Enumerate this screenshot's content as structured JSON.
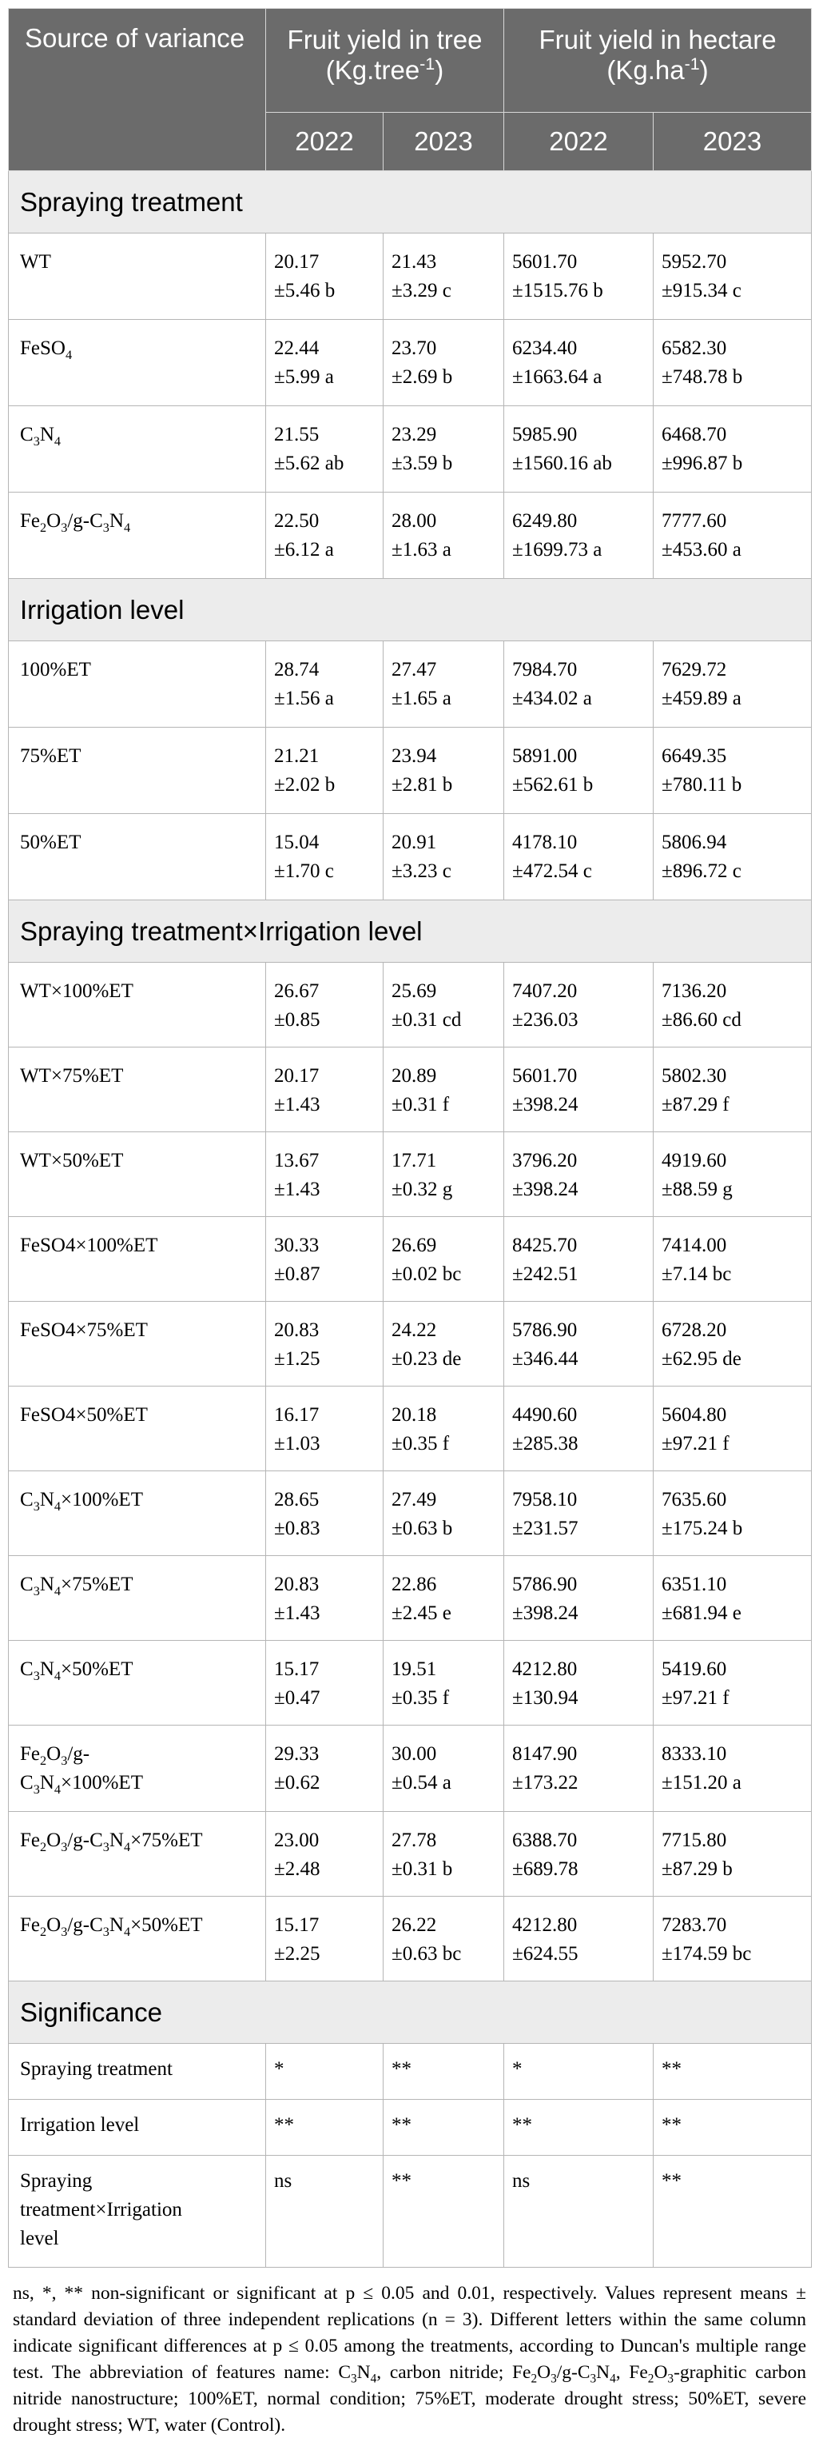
{
  "header": {
    "source_col": "Source of variance",
    "tree_group": "Fruit yield in tree (Kg.tree<sup>-1</sup>)",
    "hectare_group": "Fruit yield in hectare (Kg.ha<sup>-1</sup>)",
    "years": [
      "2022",
      "2023",
      "2022",
      "2023"
    ]
  },
  "sections": [
    {
      "title": "Spraying treatment",
      "rows": [
        {
          "label": "WT",
          "values": [
            [
              "20.17",
              "±5.46 b"
            ],
            [
              "21.43",
              "±3.29 c"
            ],
            [
              "5601.70",
              "±1515.76 b"
            ],
            [
              "5952.70",
              "±915.34 c"
            ]
          ]
        },
        {
          "label": "FeSO<sub>4</sub>",
          "values": [
            [
              "22.44",
              "±5.99 a"
            ],
            [
              "23.70",
              "±2.69 b"
            ],
            [
              "6234.40",
              "±1663.64 a"
            ],
            [
              "6582.30",
              "±748.78 b"
            ]
          ]
        },
        {
          "label": "C<sub>3</sub>N<sub>4</sub>",
          "values": [
            [
              "21.55",
              "±5.62 ab"
            ],
            [
              "23.29",
              "±3.59 b"
            ],
            [
              "5985.90",
              "±1560.16 ab"
            ],
            [
              "6468.70",
              "±996.87 b"
            ]
          ]
        },
        {
          "label": "Fe<sub>2</sub>O<sub>3</sub>/g-C<sub>3</sub>N<sub>4</sub>",
          "values": [
            [
              "22.50",
              "±6.12 a"
            ],
            [
              "28.00",
              "±1.63 a"
            ],
            [
              "6249.80",
              "±1699.73 a"
            ],
            [
              "7777.60",
              "±453.60 a"
            ]
          ]
        }
      ]
    },
    {
      "title": "Irrigation level",
      "rows": [
        {
          "label": "100%ET",
          "values": [
            [
              "28.74",
              "±1.56 a"
            ],
            [
              "27.47",
              "±1.65 a"
            ],
            [
              "7984.70",
              "±434.02 a"
            ],
            [
              "7629.72",
              "±459.89 a"
            ]
          ]
        },
        {
          "label": "75%ET",
          "values": [
            [
              "21.21",
              "±2.02 b"
            ],
            [
              "23.94",
              "±2.81 b"
            ],
            [
              "5891.00",
              "±562.61 b"
            ],
            [
              "6649.35",
              "±780.11 b"
            ]
          ]
        },
        {
          "label": "50%ET",
          "values": [
            [
              "15.04",
              "±1.70 c"
            ],
            [
              "20.91",
              "±3.23 c"
            ],
            [
              "4178.10",
              "±472.54 c"
            ],
            [
              "5806.94",
              "±896.72 c"
            ]
          ]
        }
      ]
    },
    {
      "title": "Spraying treatment×Irrigation level",
      "rows": [
        {
          "label": "WT×100%ET",
          "values": [
            [
              "26.67",
              "±0.85"
            ],
            [
              "25.69",
              "±0.31 cd"
            ],
            [
              "7407.20",
              "±236.03"
            ],
            [
              "7136.20",
              "±86.60 cd"
            ]
          ]
        },
        {
          "label": "WT×75%ET",
          "values": [
            [
              "20.17",
              "±1.43"
            ],
            [
              "20.89",
              "±0.31 f"
            ],
            [
              "5601.70",
              "±398.24"
            ],
            [
              "5802.30",
              "±87.29 f"
            ]
          ]
        },
        {
          "label": "WT×50%ET",
          "values": [
            [
              "13.67",
              "±1.43"
            ],
            [
              "17.71",
              "±0.32 g"
            ],
            [
              "3796.20",
              "±398.24"
            ],
            [
              "4919.60",
              "±88.59 g"
            ]
          ]
        },
        {
          "label": "FeSO4×100%ET",
          "values": [
            [
              "30.33",
              "±0.87"
            ],
            [
              "26.69",
              "±0.02 bc"
            ],
            [
              "8425.70",
              "±242.51"
            ],
            [
              "7414.00",
              "±7.14 bc"
            ]
          ]
        },
        {
          "label": "FeSO4×75%ET",
          "values": [
            [
              "20.83",
              "±1.25"
            ],
            [
              "24.22",
              "±0.23 de"
            ],
            [
              "5786.90",
              "±346.44"
            ],
            [
              "6728.20",
              "±62.95 de"
            ]
          ]
        },
        {
          "label": "FeSO4×50%ET",
          "values": [
            [
              "16.17",
              "±1.03"
            ],
            [
              "20.18",
              "±0.35 f"
            ],
            [
              "4490.60",
              "±285.38"
            ],
            [
              "5604.80",
              "±97.21 f"
            ]
          ]
        },
        {
          "label": "C<sub>3</sub>N<sub>4</sub>×100%ET",
          "values": [
            [
              "28.65",
              "±0.83"
            ],
            [
              "27.49",
              "±0.63 b"
            ],
            [
              "7958.10",
              "±231.57"
            ],
            [
              "7635.60",
              "±175.24 b"
            ]
          ]
        },
        {
          "label": "C<sub>3</sub>N<sub>4</sub>×75%ET",
          "values": [
            [
              "20.83",
              "±1.43"
            ],
            [
              "22.86",
              "±2.45 e"
            ],
            [
              "5786.90",
              "±398.24"
            ],
            [
              "6351.10",
              "±681.94 e"
            ]
          ]
        },
        {
          "label": "C<sub>3</sub>N<sub>4</sub>×50%ET",
          "values": [
            [
              "15.17",
              "±0.47"
            ],
            [
              "19.51",
              "±0.35 f"
            ],
            [
              "4212.80",
              "±130.94"
            ],
            [
              "5419.60",
              "±97.21 f"
            ]
          ]
        },
        {
          "label": "Fe<sub>2</sub>O<sub>3</sub>/g-<br>C<sub>3</sub>N<sub>4</sub>×100%ET",
          "values": [
            [
              "29.33",
              "±0.62"
            ],
            [
              "30.00",
              "±0.54 a"
            ],
            [
              "8147.90",
              "±173.22"
            ],
            [
              "8333.10",
              "±151.20 a"
            ]
          ]
        },
        {
          "label": "Fe<sub>2</sub>O<sub>3</sub>/g-C<sub>3</sub>N<sub>4</sub>×75%ET",
          "values": [
            [
              "23.00",
              "±2.48"
            ],
            [
              "27.78",
              "±0.31 b"
            ],
            [
              "6388.70",
              "±689.78"
            ],
            [
              "7715.80",
              "±87.29 b"
            ]
          ]
        },
        {
          "label": "Fe<sub>2</sub>O<sub>3</sub>/g-C<sub>3</sub>N<sub>4</sub>×50%ET",
          "values": [
            [
              "15.17",
              "±2.25"
            ],
            [
              "26.22",
              "±0.63 bc"
            ],
            [
              "4212.80",
              "±624.55"
            ],
            [
              "7283.70",
              "±174.59 bc"
            ]
          ]
        }
      ]
    }
  ],
  "significance": {
    "title": "Significance",
    "rows": [
      {
        "label": "Spraying treatment",
        "values": [
          "*",
          "**",
          "*",
          "**"
        ]
      },
      {
        "label": "Irrigation level",
        "values": [
          "**",
          "**",
          "**",
          "**"
        ]
      },
      {
        "label": "Spraying<br>treatment×Irrigation<br>level",
        "values": [
          "ns",
          "**",
          "ns",
          "**"
        ]
      }
    ]
  },
  "footnote": "ns, *, ** non-significant or significant at p ≤ 0.05 and 0.01, respectively. Values represent means ± standard deviation of three independent replications (n = 3). Different letters within the same column indicate significant differences at p ≤ 0.05 among the treatments, according to Duncan's multiple range test. The abbreviation of features name: C<sub>3</sub>N<sub>4</sub>, carbon nitride; Fe<sub>2</sub>O<sub>3</sub>/g-C<sub>3</sub>N<sub>4</sub>, Fe<sub>2</sub>O<sub>3</sub>-graphitic carbon nitride nanostructure; 100%ET, normal condition; 75%ET, moderate drought stress; 50%ET, severe drought stress; WT, water (Control)."
}
